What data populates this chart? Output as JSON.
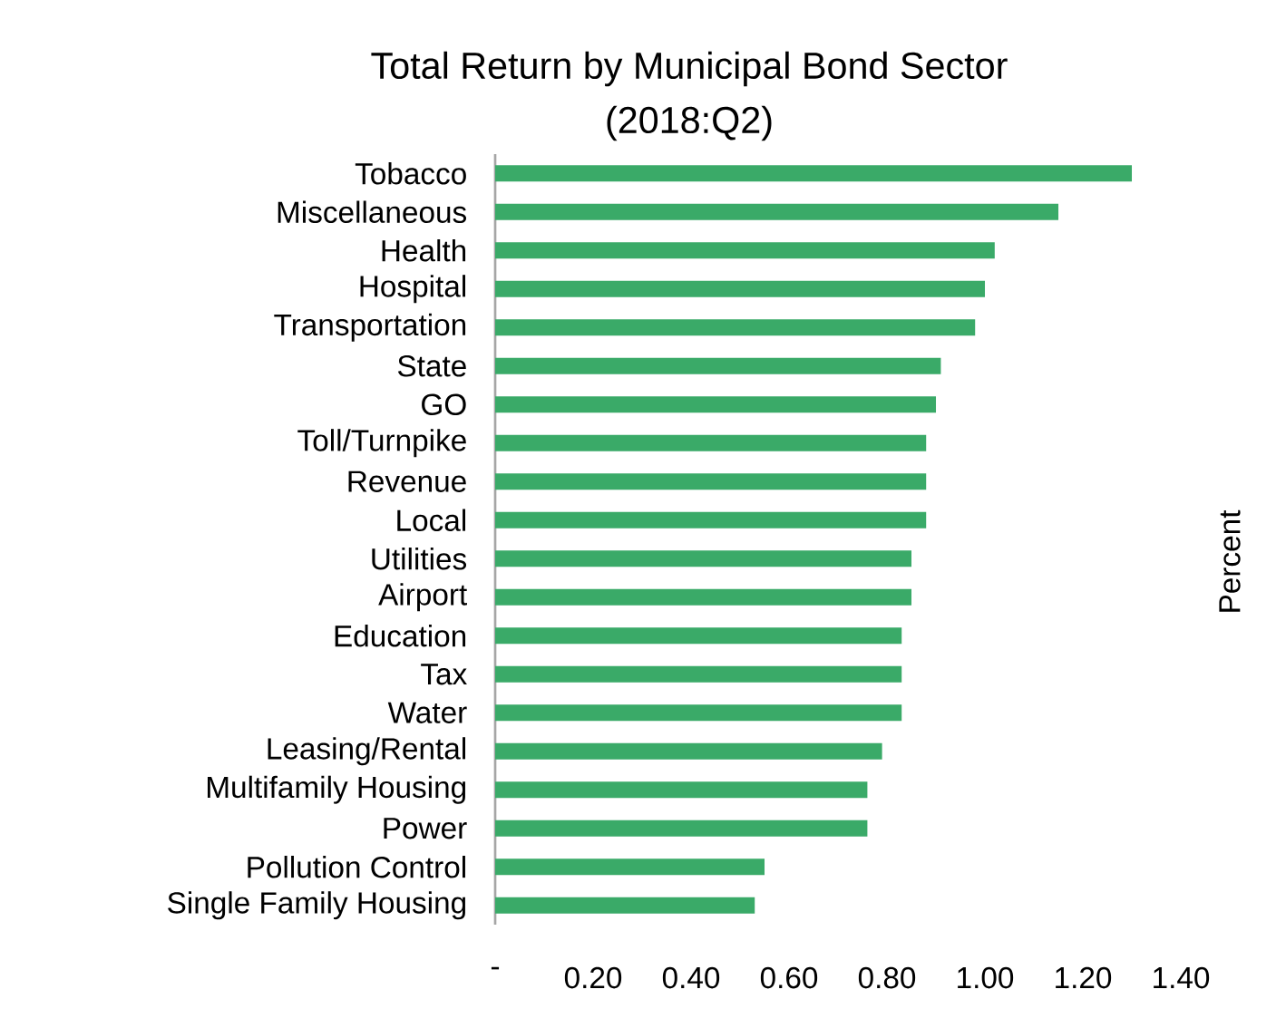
{
  "chart_data": {
    "type": "bar",
    "orientation": "horizontal",
    "title": "Total Return by Municipal Bond Sector",
    "subtitle": "(2018:Q2)",
    "ylabel": "Percent",
    "categories": [
      "Tobacco",
      "Miscellaneous",
      "Health",
      "Hospital",
      "Transportation",
      "State",
      "GO",
      "Toll/Turnpike",
      "Revenue",
      "Local",
      "Utilities",
      "Airport",
      "Education",
      "Tax",
      "Water",
      "Leasing/Rental",
      "Multifamily Housing",
      "Power",
      "Pollution Control",
      "Single Family Housing"
    ],
    "values": [
      1.3,
      1.15,
      1.02,
      1.0,
      0.98,
      0.91,
      0.9,
      0.88,
      0.88,
      0.88,
      0.85,
      0.85,
      0.83,
      0.83,
      0.83,
      0.79,
      0.76,
      0.76,
      0.55,
      0.53
    ],
    "color": "#3aaa68",
    "xlim": [
      0,
      1.4
    ],
    "xticks": [
      {
        "value": 0,
        "label": "-"
      },
      {
        "value": 0.2,
        "label": "0.20"
      },
      {
        "value": 0.4,
        "label": "0.40"
      },
      {
        "value": 0.6,
        "label": "0.60"
      },
      {
        "value": 0.8,
        "label": "0.80"
      },
      {
        "value": 1.0,
        "label": "1.00"
      },
      {
        "value": 1.2,
        "label": "1.20"
      },
      {
        "value": 1.4,
        "label": "1.40"
      }
    ]
  }
}
